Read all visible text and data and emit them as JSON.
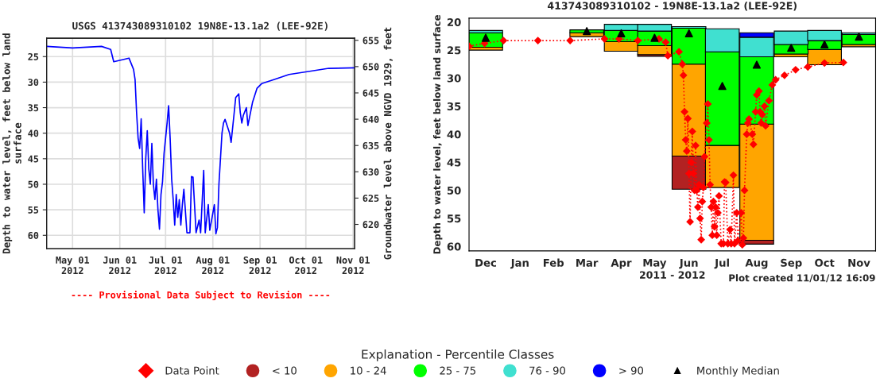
{
  "chart_data": [
    {
      "type": "line",
      "title": "USGS 413743089310102 19N8E-13.1a2 (LEE-92E)",
      "ylabel": "Depth to water level, feet below land\nsurface",
      "y2label": "Groundwater level above NGVD 1929, feet",
      "annotations": [
        "---- Provisional Data Subject to Revision ----"
      ],
      "xlim": [
        "2012-04-14",
        "2012-11-02"
      ],
      "xticks": [
        {
          "value": "2012-05-01",
          "label": "May 01\n2012"
        },
        {
          "value": "2012-06-01",
          "label": "Jun 01\n2012"
        },
        {
          "value": "2012-07-01",
          "label": "Jul 01\n2012"
        },
        {
          "value": "2012-08-01",
          "label": "Aug 01\n2012"
        },
        {
          "value": "2012-09-01",
          "label": "Sep 01\n2012"
        },
        {
          "value": "2012-10-01",
          "label": "Oct 01\n2012"
        },
        {
          "value": "2012-11-01",
          "label": "Nov 01\n2012"
        }
      ],
      "ylim": [
        62.6,
        21.4
      ],
      "yticks": [
        25,
        30,
        35,
        40,
        45,
        50,
        55,
        60
      ],
      "y2lim": [
        615.4,
        655.4
      ],
      "y2ticks": [
        620,
        625,
        630,
        635,
        640,
        645,
        650,
        655
      ],
      "grid": true,
      "series": [
        {
          "color": "#0000ff",
          "x": [
            "2012-04-14",
            "2012-05-01",
            "2012-05-20",
            "2012-05-26",
            "2012-05-28",
            "2012-06-07",
            "2012-06-10",
            "2012-06-11",
            "2012-06-12",
            "2012-06-13",
            "2012-06-14",
            "2012-06-15",
            "2012-06-16",
            "2012-06-17",
            "2012-06-18",
            "2012-06-19",
            "2012-06-20",
            "2012-06-21",
            "2012-06-22",
            "2012-06-23",
            "2012-06-24",
            "2012-06-25",
            "2012-06-26",
            "2012-06-27",
            "2012-06-28",
            "2012-06-29",
            "2012-06-30",
            "2012-07-02",
            "2012-07-03",
            "2012-07-04",
            "2012-07-05",
            "2012-07-06",
            "2012-07-07",
            "2012-07-08",
            "2012-07-09",
            "2012-07-10",
            "2012-07-11",
            "2012-07-12",
            "2012-07-13",
            "2012-07-15",
            "2012-07-17",
            "2012-07-18",
            "2012-07-19",
            "2012-07-21",
            "2012-07-23",
            "2012-07-24",
            "2012-07-26",
            "2012-07-27",
            "2012-07-29",
            "2012-07-30",
            "2012-08-02",
            "2012-08-03",
            "2012-08-04",
            "2012-08-05",
            "2012-08-07",
            "2012-08-08",
            "2012-08-09",
            "2012-08-12",
            "2012-08-13",
            "2012-08-15",
            "2012-08-16",
            "2012-08-18",
            "2012-08-19",
            "2012-08-20",
            "2012-08-21",
            "2012-08-23",
            "2012-08-24",
            "2012-08-27",
            "2012-08-30",
            "2012-09-02",
            "2012-09-10",
            "2012-09-20",
            "2012-10-01",
            "2012-10-16",
            "2012-11-02"
          ],
          "values": [
            23.0,
            23.3,
            23.0,
            23.6,
            26.0,
            25.3,
            27.5,
            29.5,
            36,
            41,
            43,
            37.2,
            47,
            55.6,
            45,
            39.5,
            47,
            50,
            42,
            50,
            53,
            49,
            55,
            58.8,
            52,
            49.5,
            44,
            38,
            34.6,
            41,
            49,
            53,
            58,
            52,
            56.5,
            53,
            58,
            54,
            51,
            59.5,
            59.5,
            48.5,
            48.6,
            59.5,
            57,
            59.5,
            47.3,
            59.5,
            54,
            59,
            54,
            59.7,
            58.5,
            50,
            40,
            38,
            37.3,
            40,
            41.8,
            36,
            33,
            32.3,
            36,
            38,
            36.5,
            35,
            38.5,
            34,
            31.2,
            30.3,
            29.5,
            28.5,
            28.0,
            27.3,
            27.2
          ]
        }
      ]
    },
    {
      "type": "bar",
      "title": "413743089310102 - 19N8E-13.1a2 (LEE-92E)",
      "xlabel": "2011 - 2012",
      "ylabel": "Depth to water level, feet below land surface",
      "annotations": [
        "Plot created 11/01/12 16:09"
      ],
      "xlim": [
        "2011-12-01",
        "2012-12-01"
      ],
      "xticks": [
        {
          "value": "2011-12-16",
          "label": "Dec"
        },
        {
          "value": "2012-01-16",
          "label": "Jan"
        },
        {
          "value": "2012-02-15",
          "label": "Feb"
        },
        {
          "value": "2012-03-16",
          "label": "Mar"
        },
        {
          "value": "2012-04-16",
          "label": "Apr"
        },
        {
          "value": "2012-05-16",
          "label": "May"
        },
        {
          "value": "2012-06-16",
          "label": "Jun"
        },
        {
          "value": "2012-07-16",
          "label": "Jul"
        },
        {
          "value": "2012-08-16",
          "label": "Aug"
        },
        {
          "value": "2012-09-16",
          "label": "Sep"
        },
        {
          "value": "2012-10-16",
          "label": "Oct"
        },
        {
          "value": "2012-11-16",
          "label": "Nov"
        }
      ],
      "ylim": [
        60.8,
        19.3
      ],
      "yticks": [
        20,
        25,
        30,
        35,
        40,
        45,
        50,
        55,
        60
      ],
      "legend": "bottom",
      "legend_title": "Explanation - Percentile Classes",
      "x": [
        "2011-12-16",
        "2012-03-16",
        "2012-04-16",
        "2012-05-16",
        "2012-06-16",
        "2012-07-16",
        "2012-08-16",
        "2012-09-16",
        "2012-10-16",
        "2012-11-16"
      ],
      "series": [
        {
          "type": "line",
          "name": "Data Point",
          "color": "#ff0000",
          "marker": "diamond",
          "line_style": "dotted",
          "x": [
            "2011-12-01",
            "2011-12-15",
            "2012-01-01",
            "2012-02-01",
            "2012-03-01",
            "2012-04-01",
            "2012-04-14",
            "2012-05-01",
            "2012-05-20",
            "2012-05-26",
            "2012-05-28",
            "2012-06-07",
            "2012-06-10",
            "2012-06-11",
            "2012-06-12",
            "2012-06-13",
            "2012-06-14",
            "2012-06-15",
            "2012-06-16",
            "2012-06-17",
            "2012-06-18",
            "2012-06-19",
            "2012-06-20",
            "2012-06-21",
            "2012-06-22",
            "2012-06-23",
            "2012-06-24",
            "2012-06-25",
            "2012-06-26",
            "2012-06-27",
            "2012-06-28",
            "2012-06-29",
            "2012-06-30",
            "2012-07-02",
            "2012-07-03",
            "2012-07-04",
            "2012-07-05",
            "2012-07-06",
            "2012-07-07",
            "2012-07-08",
            "2012-07-09",
            "2012-07-10",
            "2012-07-11",
            "2012-07-12",
            "2012-07-13",
            "2012-07-15",
            "2012-07-17",
            "2012-07-18",
            "2012-07-19",
            "2012-07-21",
            "2012-07-23",
            "2012-07-24",
            "2012-07-26",
            "2012-07-27",
            "2012-07-29",
            "2012-07-30",
            "2012-08-02",
            "2012-08-03",
            "2012-08-04",
            "2012-08-05",
            "2012-08-07",
            "2012-08-08",
            "2012-08-09",
            "2012-08-12",
            "2012-08-13",
            "2012-08-15",
            "2012-08-16",
            "2012-08-18",
            "2012-08-19",
            "2012-08-20",
            "2012-08-21",
            "2012-08-23",
            "2012-08-24",
            "2012-08-27",
            "2012-08-30",
            "2012-09-02",
            "2012-09-10",
            "2012-09-20",
            "2012-10-01",
            "2012-10-16",
            "2012-11-02"
          ],
          "values": [
            24.3,
            23.8,
            23.3,
            23.3,
            23.3,
            23.0,
            23.0,
            23.3,
            23.0,
            23.6,
            26.0,
            25.3,
            27.5,
            29.5,
            36,
            41,
            43,
            37.2,
            47,
            55.6,
            45,
            39.5,
            47,
            50,
            42,
            50,
            53,
            49,
            55,
            58.8,
            52,
            49.5,
            44,
            38,
            34.6,
            41,
            49,
            53,
            58,
            52,
            56.5,
            53,
            58,
            54,
            51,
            59.5,
            59.5,
            48.5,
            48.6,
            59.5,
            57,
            59.5,
            47.3,
            59.5,
            54,
            59,
            54,
            59.7,
            58.5,
            50,
            40,
            38,
            37.3,
            40,
            41.8,
            36,
            33,
            32.3,
            36,
            38,
            36.5,
            35,
            38.5,
            34,
            31.2,
            30.3,
            29.5,
            28.5,
            28.0,
            27.3,
            27.2
          ]
        },
        {
          "name": "< 10",
          "color": "#b22222",
          "base": [
            null,
            null,
            null,
            25.8,
            43.9,
            null,
            58.9,
            null,
            null,
            null
          ],
          "values": [
            null,
            null,
            null,
            0.3,
            5.9,
            null,
            0.7,
            null,
            null,
            null
          ]
        },
        {
          "name": "10 - 24",
          "color": "#ffa500",
          "base": [
            24.5,
            21.9,
            23.5,
            24.2,
            27.5,
            42.0,
            38.2,
            25.7,
            24.9,
            24.0
          ],
          "values": [
            0.5,
            0.7,
            1.7,
            1.6,
            16.4,
            7.5,
            20.7,
            0.5,
            2.7,
            0.4
          ]
        },
        {
          "name": "25 - 75",
          "color": "#00ff00",
          "base": [
            21.9,
            21.4,
            21.5,
            21.6,
            21.1,
            25.3,
            26.2,
            24.0,
            23.3,
            22.2
          ],
          "values": [
            2.6,
            0.5,
            2.0,
            2.6,
            6.4,
            16.7,
            12.0,
            1.7,
            1.6,
            1.8
          ]
        },
        {
          "name": "76 - 90",
          "color": "#40e0d0",
          "base": [
            21.5,
            null,
            20.4,
            20.4,
            20.8,
            21.2,
            22.7,
            21.6,
            21.5,
            21.9
          ],
          "values": [
            0.4,
            null,
            1.1,
            1.2,
            0.3,
            4.1,
            3.5,
            2.4,
            1.8,
            0.3
          ]
        },
        {
          "name": "> 90",
          "color": "#0000ff",
          "base": [
            null,
            null,
            null,
            null,
            null,
            null,
            21.9,
            null,
            null,
            null
          ],
          "values": [
            null,
            null,
            null,
            null,
            null,
            null,
            0.8,
            null,
            null,
            null
          ]
        },
        {
          "type": "scatter",
          "name": "Monthly Median",
          "color": "#000000",
          "marker": "triangle",
          "values": [
            22.8,
            21.6,
            22.0,
            22.8,
            22.0,
            31.4,
            27.6,
            24.6,
            24.0,
            22.6
          ]
        }
      ]
    }
  ]
}
